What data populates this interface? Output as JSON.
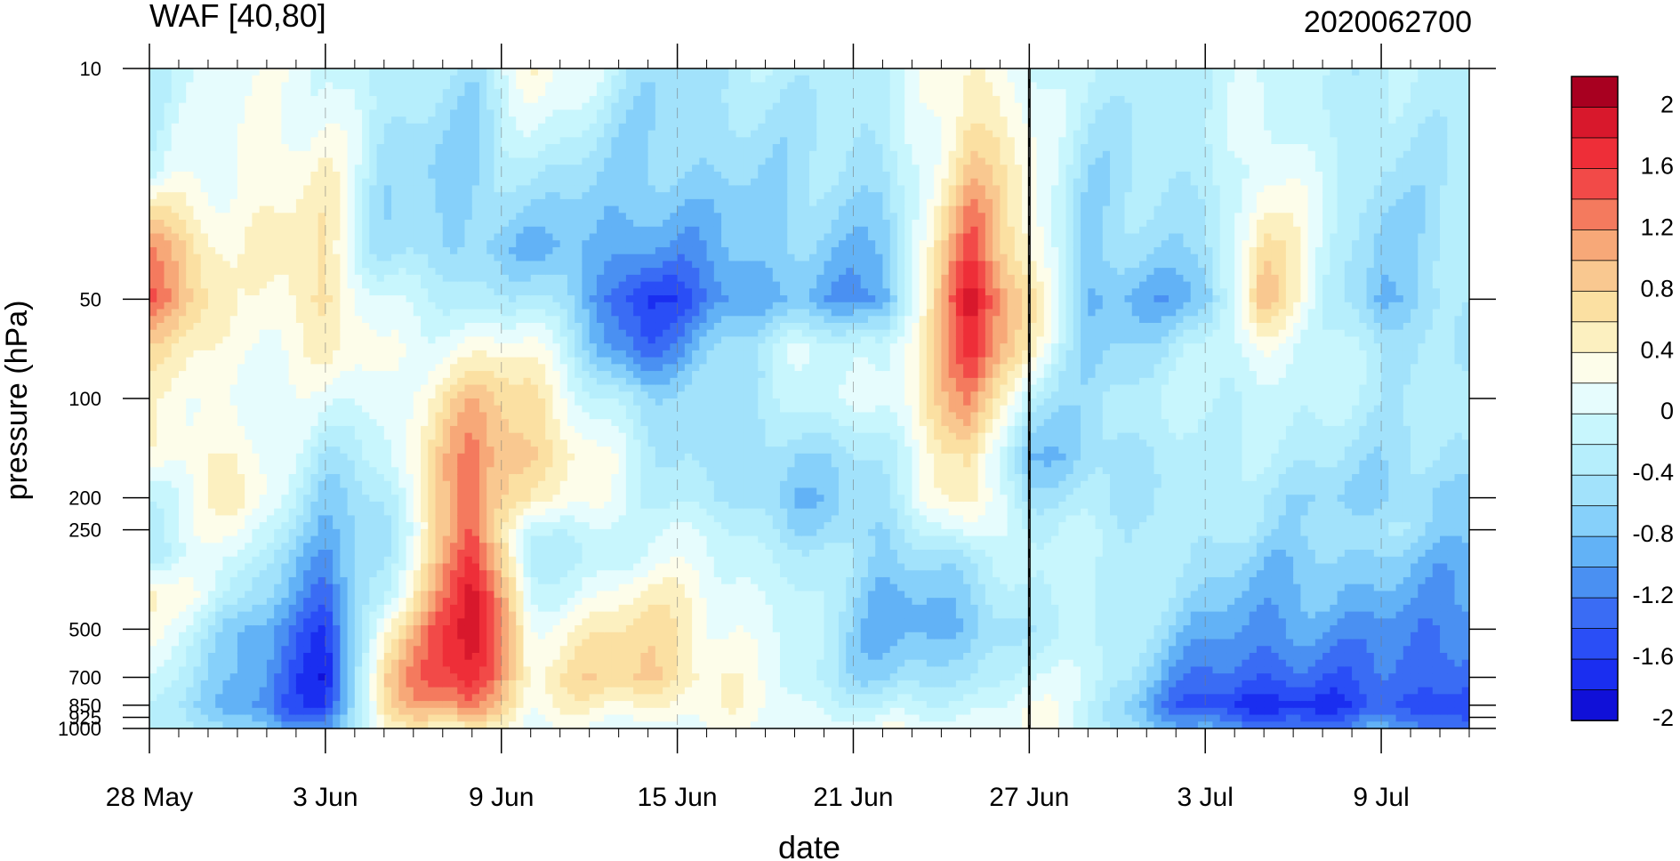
{
  "chart_data": {
    "type": "heatmap",
    "title": "WAF [40,80]",
    "subtitle": "2020062700",
    "xlabel": "date",
    "ylabel": "pressure (hPa)",
    "x_ticks": [
      "28 May",
      "3 Jun",
      "9 Jun",
      "15 Jun",
      "21 Jun",
      "27 Jun",
      "3 Jul",
      "9 Jul"
    ],
    "x_range": [
      "28 May",
      "12 Jul"
    ],
    "y_ticks": [
      10,
      50,
      100,
      200,
      250,
      500,
      700,
      850,
      925,
      1000
    ],
    "y_tick_labels": [
      "10",
      "50",
      "100",
      "200",
      "250",
      "500",
      "700",
      "850",
      "925",
      "1000"
    ],
    "y_scale": "log",
    "y_inverted": true,
    "ylim": [
      1000,
      10
    ],
    "reference_line": "27 Jun",
    "colorbar": {
      "labels": [
        "2",
        "1.6",
        "1.2",
        "0.8",
        "0.4",
        "0",
        "-0.4",
        "-0.8",
        "-1.2",
        "-1.6",
        "-2"
      ],
      "levels": [
        -2.2,
        -2.0,
        -1.8,
        -1.6,
        -1.4,
        -1.2,
        -1.0,
        -0.8,
        -0.6,
        -0.4,
        -0.2,
        0,
        0.2,
        0.4,
        0.6,
        0.8,
        1.0,
        1.2,
        1.4,
        1.6,
        1.8,
        2.0,
        2.2
      ],
      "colors": [
        "#1010d8",
        "#1a2ef0",
        "#2a4ef6",
        "#3a6cf4",
        "#4a90f2",
        "#62b2f6",
        "#86d0fa",
        "#a2e2fb",
        "#b6eefc",
        "#c8f6fd",
        "#e6fcfd",
        "#fdfdea",
        "#fcf0c0",
        "#fbe0a2",
        "#f9c890",
        "#f7a878",
        "#f47a5e",
        "#f24a48",
        "#ee2e38",
        "#d8182c",
        "#a80020"
      ]
    },
    "grid": "dashed vertical lines at date ticks",
    "series_anchors": [
      {
        "date": "28 May",
        "values": [
          -0.3,
          -0.3,
          1.2,
          1.5,
          0.6,
          0.2,
          0.3,
          -0.2,
          -0.3,
          -0.4,
          0.4,
          0.3,
          0.0,
          -0.2,
          -0.3
        ]
      },
      {
        "date": "31 May",
        "values": [
          0.0,
          0.2,
          0.2,
          0.1,
          0.1,
          0.1,
          0.3,
          0.4,
          0.2,
          0.0,
          -0.3,
          -0.8,
          -1.0,
          -1.2,
          -0.8
        ]
      },
      {
        "date": "3 Jun",
        "values": [
          0.0,
          0.3,
          0.5,
          0.6,
          0.4,
          -0.1,
          -0.5,
          -0.7,
          -0.9,
          -1.2,
          -1.6,
          -1.9,
          -2.0,
          -1.8,
          -1.2
        ]
      },
      {
        "date": "5 Jun",
        "values": [
          -0.4,
          -0.6,
          -0.6,
          -0.2,
          0.0,
          0.0,
          -0.2,
          -0.6,
          -0.8,
          -0.6,
          -0.2,
          0.4,
          0.8,
          0.6,
          0.2
        ]
      },
      {
        "date": "8 Jun",
        "values": [
          -0.6,
          -0.8,
          -0.8,
          -0.4,
          0.2,
          0.8,
          1.2,
          1.4,
          1.6,
          1.8,
          2.0,
          2.0,
          1.8,
          1.4,
          0.6
        ]
      },
      {
        "date": "10 Jun",
        "values": [
          0.4,
          -0.4,
          -0.9,
          -0.4,
          0.2,
          0.6,
          0.8,
          0.4,
          -0.4,
          -0.6,
          -0.2,
          0.2,
          0.4,
          0.2,
          0.0
        ]
      },
      {
        "date": "14 Jun",
        "values": [
          -0.6,
          -0.8,
          -1.2,
          -1.8,
          -1.6,
          -0.8,
          -0.4,
          -0.2,
          0.0,
          0.0,
          0.4,
          0.6,
          0.8,
          0.4,
          0.0
        ]
      },
      {
        "date": "19 Jun",
        "values": [
          -0.4,
          -0.6,
          -0.8,
          -0.9,
          0.0,
          -0.3,
          -0.8,
          -0.9,
          -0.6,
          -0.3,
          -0.2,
          -0.2,
          -0.2,
          0.0,
          0.1
        ]
      },
      {
        "date": "22 Jun",
        "values": [
          -0.4,
          -0.6,
          -0.9,
          -1.3,
          -0.4,
          0.0,
          -0.4,
          -0.6,
          -0.8,
          -0.8,
          -1.0,
          -1.0,
          -0.8,
          -0.4,
          0.0
        ]
      },
      {
        "date": "25 Jun",
        "values": [
          0.4,
          0.8,
          1.4,
          2.0,
          1.8,
          1.2,
          0.6,
          0.6,
          0.2,
          -0.4,
          -0.8,
          -1.0,
          -0.6,
          -0.2,
          0.1
        ]
      },
      {
        "date": "27 Jun",
        "values": [
          0.0,
          0.2,
          0.4,
          0.6,
          0.3,
          -0.4,
          -0.9,
          -0.6,
          -0.4,
          -0.3,
          -0.3,
          -0.4,
          0.0,
          0.2,
          0.2
        ]
      },
      {
        "date": "29 Jun",
        "values": [
          -0.4,
          -0.6,
          -0.8,
          -1.0,
          -0.8,
          -0.6,
          -0.8,
          -0.6,
          -0.3,
          -0.2,
          -0.2,
          -0.2,
          -0.2,
          -0.3,
          -0.3
        ]
      },
      {
        "date": "3 Jul",
        "values": [
          -0.3,
          -0.5,
          -0.6,
          -1.0,
          -0.4,
          -0.2,
          -0.3,
          -0.4,
          -0.5,
          -0.6,
          -0.8,
          -1.0,
          -1.4,
          -1.8,
          -1.2
        ]
      },
      {
        "date": "5 Jul",
        "values": [
          -0.2,
          0.2,
          0.6,
          0.9,
          0.2,
          -0.2,
          -0.4,
          -0.6,
          -0.6,
          -0.8,
          -1.0,
          -1.2,
          -1.6,
          -2.0,
          -1.4
        ]
      },
      {
        "date": "9 Jul",
        "values": [
          -0.4,
          -0.6,
          -0.8,
          -1.1,
          -0.6,
          -0.4,
          -0.6,
          -0.8,
          -0.6,
          -0.8,
          -1.0,
          -1.2,
          -1.4,
          -1.6,
          -1.2
        ]
      },
      {
        "date": "12 Jul",
        "values": [
          -0.4,
          -0.4,
          -0.6,
          -0.4,
          -0.4,
          -0.4,
          -0.6,
          -0.8,
          -0.8,
          -1.0,
          -1.2,
          -1.4,
          -1.6,
          -1.8,
          -1.4
        ]
      }
    ],
    "pressure_levels": [
      10,
      20,
      35,
      50,
      70,
      100,
      150,
      200,
      250,
      300,
      400,
      500,
      700,
      850,
      1000
    ]
  }
}
